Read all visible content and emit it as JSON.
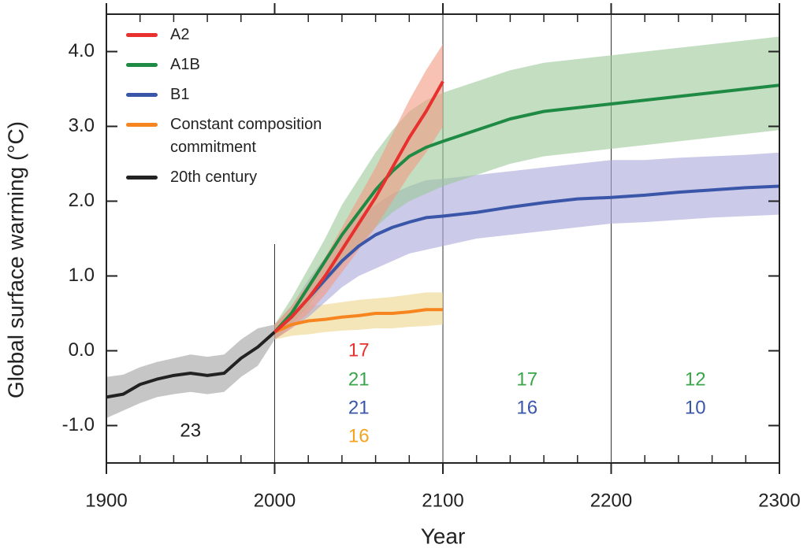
{
  "chart_data": {
    "type": "line",
    "xlabel": "Year",
    "ylabel": "Global surface warming (°C)",
    "xlim": [
      1900,
      2300
    ],
    "ylim": [
      -1.5,
      4.5
    ],
    "xticks": [
      1900,
      2000,
      2100,
      2200,
      2300
    ],
    "xminorticks": [
      1920,
      1940,
      1960,
      1980,
      2020,
      2040,
      2060,
      2080,
      2120,
      2140,
      2160,
      2180,
      2220,
      2240,
      2260,
      2280
    ],
    "yticks": [
      {
        "value": -1,
        "label": "-1.0"
      },
      {
        "value": 0,
        "label": "0.0"
      },
      {
        "value": 1,
        "label": "1.0"
      },
      {
        "value": 2,
        "label": "2.0"
      },
      {
        "value": 3,
        "label": "3.0"
      },
      {
        "value": 4,
        "label": "4.0"
      }
    ],
    "legend": "upper left",
    "series": [
      {
        "name": "A2",
        "color": "#e8312f",
        "band_color": "#f29a80",
        "x": [
          2000,
          2010,
          2020,
          2030,
          2040,
          2050,
          2060,
          2070,
          2080,
          2090,
          2100
        ],
        "values": [
          0.25,
          0.45,
          0.7,
          1.0,
          1.35,
          1.7,
          2.05,
          2.45,
          2.85,
          3.2,
          3.6
        ],
        "lower": [
          0.15,
          0.3,
          0.5,
          0.75,
          1.05,
          1.35,
          1.65,
          2.0,
          2.35,
          2.65,
          3.0
        ],
        "upper": [
          0.35,
          0.6,
          0.9,
          1.25,
          1.65,
          2.05,
          2.45,
          2.9,
          3.35,
          3.75,
          4.1
        ],
        "model_counts": [
          17
        ]
      },
      {
        "name": "A1B",
        "color": "#1f8a44",
        "band_color": "#9dc89a",
        "count_color": "#3aa64a",
        "x": [
          2000,
          2010,
          2020,
          2030,
          2040,
          2050,
          2060,
          2070,
          2080,
          2090,
          2100,
          2120,
          2140,
          2160,
          2180,
          2200,
          2220,
          2240,
          2260,
          2280,
          2300
        ],
        "values": [
          0.25,
          0.5,
          0.85,
          1.2,
          1.55,
          1.85,
          2.15,
          2.4,
          2.6,
          2.72,
          2.8,
          2.95,
          3.1,
          3.2,
          3.25,
          3.3,
          3.35,
          3.4,
          3.45,
          3.5,
          3.55
        ],
        "lower": [
          0.15,
          0.35,
          0.6,
          0.9,
          1.15,
          1.4,
          1.65,
          1.85,
          2.0,
          2.1,
          2.2,
          2.35,
          2.5,
          2.6,
          2.65,
          2.7,
          2.75,
          2.8,
          2.85,
          2.9,
          2.95
        ],
        "upper": [
          0.35,
          0.7,
          1.1,
          1.5,
          1.95,
          2.3,
          2.65,
          2.95,
          3.2,
          3.35,
          3.45,
          3.6,
          3.75,
          3.85,
          3.9,
          3.95,
          4.0,
          4.05,
          4.1,
          4.15,
          4.2
        ],
        "model_counts": [
          21,
          17,
          12
        ]
      },
      {
        "name": "B1",
        "color": "#3a56a8",
        "band_color": "#a9a6d8",
        "x": [
          2000,
          2010,
          2020,
          2030,
          2040,
          2050,
          2060,
          2070,
          2080,
          2090,
          2100,
          2120,
          2140,
          2160,
          2180,
          2200,
          2220,
          2240,
          2260,
          2280,
          2300
        ],
        "values": [
          0.25,
          0.45,
          0.7,
          0.95,
          1.2,
          1.4,
          1.55,
          1.65,
          1.72,
          1.78,
          1.8,
          1.85,
          1.92,
          1.98,
          2.03,
          2.05,
          2.08,
          2.12,
          2.15,
          2.18,
          2.2
        ],
        "lower": [
          0.15,
          0.3,
          0.45,
          0.65,
          0.85,
          1.0,
          1.1,
          1.2,
          1.3,
          1.35,
          1.4,
          1.5,
          1.55,
          1.6,
          1.65,
          1.7,
          1.72,
          1.75,
          1.78,
          1.8,
          1.82
        ],
        "upper": [
          0.35,
          0.6,
          0.95,
          1.25,
          1.55,
          1.8,
          1.95,
          2.1,
          2.2,
          2.28,
          2.3,
          2.35,
          2.4,
          2.45,
          2.5,
          2.55,
          2.55,
          2.58,
          2.6,
          2.62,
          2.65
        ],
        "model_counts": [
          21,
          16,
          10
        ]
      },
      {
        "name": "Constant composition commitment",
        "color": "#f7851f",
        "band_color": "#ecd58a",
        "count_color": "#f7a21f",
        "x": [
          2000,
          2010,
          2020,
          2030,
          2040,
          2050,
          2060,
          2070,
          2080,
          2090,
          2100
        ],
        "values": [
          0.25,
          0.35,
          0.4,
          0.42,
          0.45,
          0.47,
          0.5,
          0.5,
          0.52,
          0.55,
          0.55
        ],
        "lower": [
          0.15,
          0.2,
          0.22,
          0.25,
          0.27,
          0.28,
          0.3,
          0.3,
          0.32,
          0.33,
          0.35
        ],
        "upper": [
          0.35,
          0.55,
          0.6,
          0.62,
          0.65,
          0.68,
          0.7,
          0.72,
          0.75,
          0.78,
          0.78
        ],
        "model_counts": [
          16
        ]
      },
      {
        "name": "20th century",
        "color": "#222222",
        "band_color": "#a0a0a0",
        "x": [
          1900,
          1910,
          1920,
          1930,
          1940,
          1950,
          1960,
          1970,
          1980,
          1990,
          2000
        ],
        "values": [
          -0.62,
          -0.58,
          -0.45,
          -0.38,
          -0.33,
          -0.3,
          -0.33,
          -0.3,
          -0.1,
          0.05,
          0.25
        ],
        "lower": [
          -0.9,
          -0.8,
          -0.7,
          -0.62,
          -0.58,
          -0.55,
          -0.58,
          -0.55,
          -0.35,
          -0.2,
          0.15
        ],
        "upper": [
          -0.35,
          -0.32,
          -0.22,
          -0.15,
          -0.1,
          -0.05,
          -0.08,
          -0.05,
          0.15,
          0.3,
          0.35
        ],
        "model_counts": [
          23
        ]
      }
    ]
  }
}
